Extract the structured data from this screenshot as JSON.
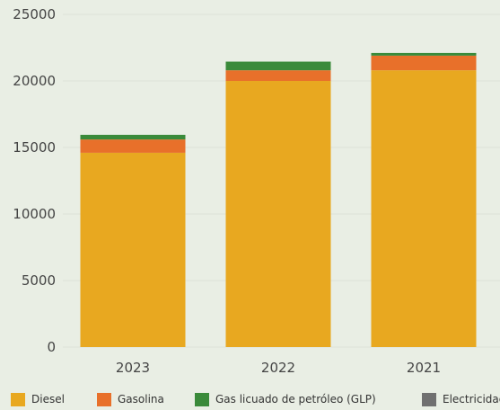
{
  "chart_data": {
    "type": "bar",
    "stacked": true,
    "title": "",
    "xlabel": "",
    "ylabel": "",
    "categories": [
      "2023",
      "2022",
      "2021"
    ],
    "ylim": [
      0,
      25000
    ],
    "yticks": [
      0,
      5000,
      10000,
      15000,
      20000,
      25000
    ],
    "grid": true,
    "legend_position": "bottom",
    "series": [
      {
        "name": "Diesel",
        "color": "#e8a820",
        "values": [
          14600,
          20000,
          20800
        ]
      },
      {
        "name": "Gasolina",
        "color": "#e8702a",
        "values": [
          1000,
          800,
          1100
        ]
      },
      {
        "name": "Gas licuado de petróleo (GLP)",
        "color": "#3a8a3a",
        "values": [
          350,
          650,
          200
        ]
      },
      {
        "name": "Electricidad",
        "color": "#707070",
        "values": [
          0,
          0,
          0
        ]
      }
    ]
  }
}
